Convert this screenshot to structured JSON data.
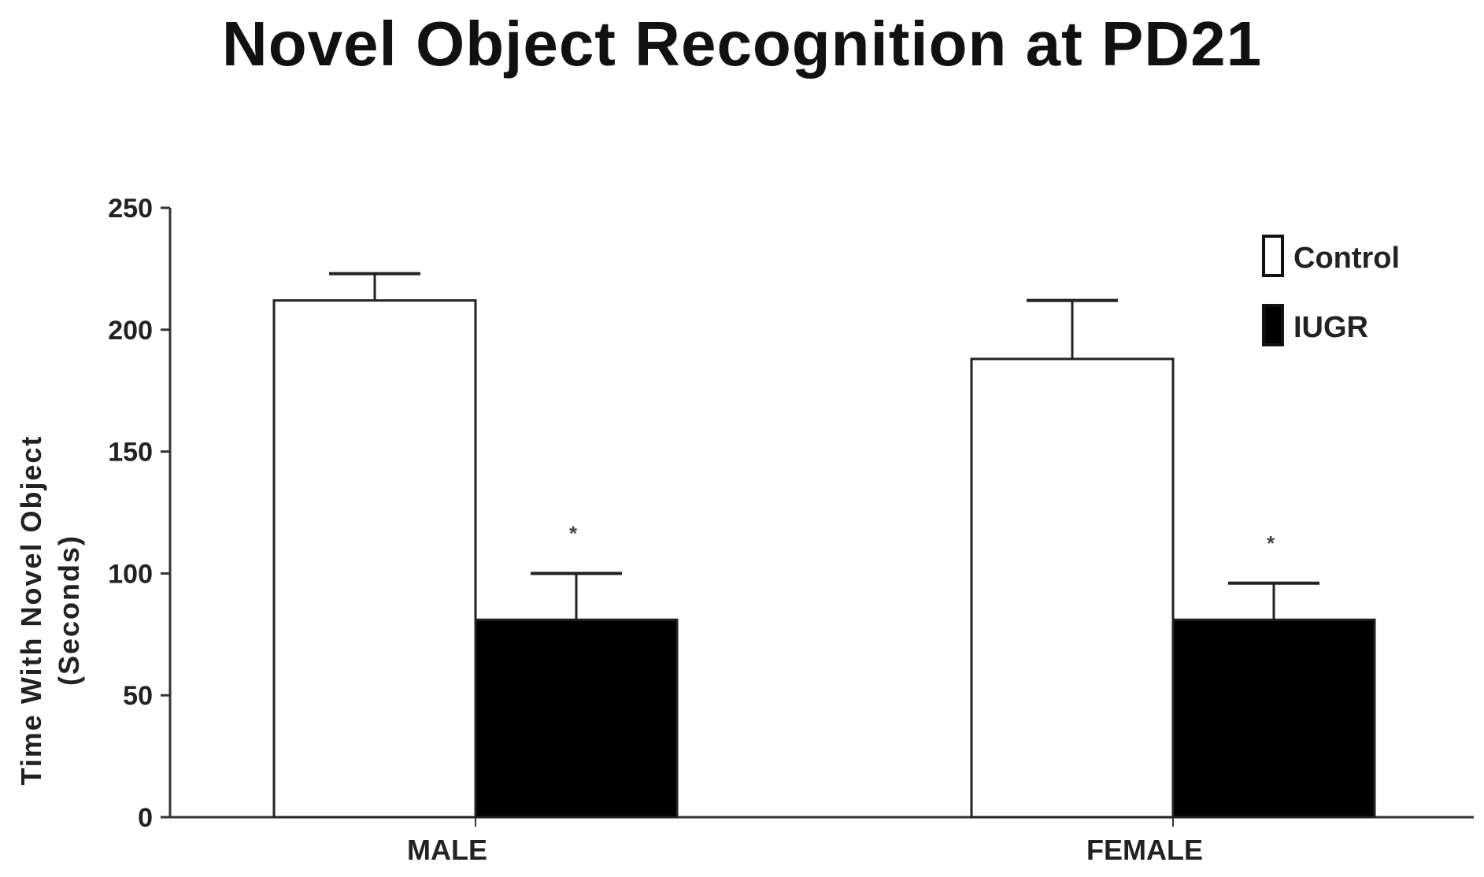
{
  "chart_data": {
    "type": "bar",
    "title": "Novel Object Recognition at PD21",
    "ylabel_line1": "Time With Novel Object",
    "ylabel_line2": "(Seconds)",
    "xlabel": "",
    "categories": [
      "MALE",
      "FEMALE"
    ],
    "ylim": [
      0,
      250
    ],
    "yticks": [
      "0",
      "50",
      "100",
      "150",
      "200",
      "250"
    ],
    "series": [
      {
        "name": "Control",
        "values": [
          212,
          188
        ],
        "errors": [
          11,
          24
        ],
        "color": "#ffffff"
      },
      {
        "name": "IUGR",
        "values": [
          81,
          81
        ],
        "errors": [
          19,
          15
        ],
        "color": "#000000"
      }
    ],
    "annotations": [
      "*",
      "*"
    ],
    "legend": "top-right",
    "grid": false
  }
}
